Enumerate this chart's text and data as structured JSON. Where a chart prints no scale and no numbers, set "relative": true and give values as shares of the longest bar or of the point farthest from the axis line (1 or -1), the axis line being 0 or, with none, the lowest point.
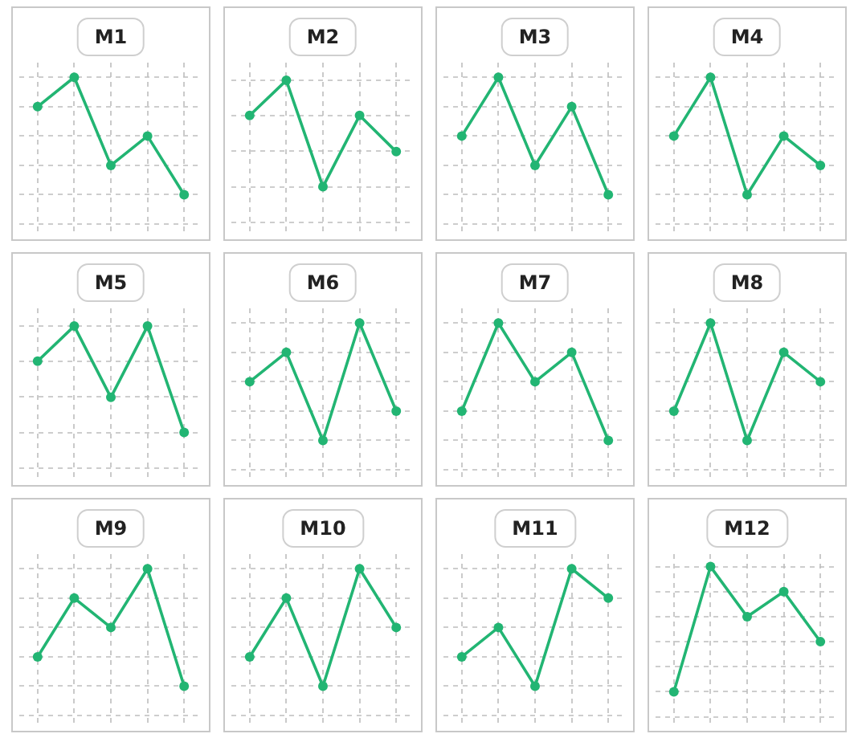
{
  "chart_data": [
    {
      "type": "line",
      "title": "M1",
      "categories": [
        null,
        null,
        null,
        null,
        null
      ],
      "relative": true,
      "grid": true,
      "marker": "circle",
      "series": [
        {
          "color": "#22b573",
          "values": [
            0.75,
            1,
            0.25,
            0.5,
            0
          ]
        }
      ]
    },
    {
      "type": "line",
      "title": "M2",
      "categories": [
        null,
        null,
        null,
        null,
        null
      ],
      "relative": true,
      "grid": true,
      "marker": "circle",
      "series": [
        {
          "color": "#22b573",
          "values": [
            0.67,
            1,
            0,
            0.67,
            0.33
          ]
        }
      ]
    },
    {
      "type": "line",
      "title": "M3",
      "categories": [
        null,
        null,
        null,
        null,
        null
      ],
      "relative": true,
      "grid": true,
      "marker": "circle",
      "series": [
        {
          "color": "#22b573",
          "values": [
            0.5,
            1,
            0.25,
            0.75,
            0
          ]
        }
      ]
    },
    {
      "type": "line",
      "title": "M4",
      "categories": [
        null,
        null,
        null,
        null,
        null
      ],
      "relative": true,
      "grid": true,
      "marker": "circle",
      "series": [
        {
          "color": "#22b573",
          "values": [
            0.5,
            1,
            0,
            0.5,
            0.25
          ]
        }
      ]
    },
    {
      "type": "line",
      "title": "M5",
      "categories": [
        null,
        null,
        null,
        null,
        null
      ],
      "relative": true,
      "grid": true,
      "marker": "circle",
      "series": [
        {
          "color": "#22b573",
          "values": [
            0.67,
            1,
            0.33,
            1,
            0
          ]
        }
      ]
    },
    {
      "type": "line",
      "title": "M6",
      "categories": [
        null,
        null,
        null,
        null,
        null
      ],
      "relative": true,
      "grid": true,
      "marker": "circle",
      "series": [
        {
          "color": "#22b573",
          "values": [
            0.5,
            0.75,
            0,
            1,
            0.25
          ]
        }
      ]
    },
    {
      "type": "line",
      "title": "M7",
      "categories": [
        null,
        null,
        null,
        null,
        null
      ],
      "relative": true,
      "grid": true,
      "marker": "circle",
      "series": [
        {
          "color": "#22b573",
          "values": [
            0.25,
            1,
            0.5,
            0.75,
            0
          ]
        }
      ]
    },
    {
      "type": "line",
      "title": "M8",
      "categories": [
        null,
        null,
        null,
        null,
        null
      ],
      "relative": true,
      "grid": true,
      "marker": "circle",
      "series": [
        {
          "color": "#22b573",
          "values": [
            0.25,
            1,
            0,
            0.75,
            0.5
          ]
        }
      ]
    },
    {
      "type": "line",
      "title": "M9",
      "categories": [
        null,
        null,
        null,
        null,
        null
      ],
      "relative": true,
      "grid": true,
      "marker": "circle",
      "series": [
        {
          "color": "#22b573",
          "values": [
            0.25,
            0.75,
            0.5,
            1,
            0
          ]
        }
      ]
    },
    {
      "type": "line",
      "title": "M10",
      "categories": [
        null,
        null,
        null,
        null,
        null
      ],
      "relative": true,
      "grid": true,
      "marker": "circle",
      "series": [
        {
          "color": "#22b573",
          "values": [
            0.25,
            0.75,
            0,
            1,
            0.5
          ]
        }
      ]
    },
    {
      "type": "line",
      "title": "M11",
      "categories": [
        null,
        null,
        null,
        null,
        null
      ],
      "relative": true,
      "grid": true,
      "marker": "circle",
      "series": [
        {
          "color": "#22b573",
          "values": [
            0.25,
            0.5,
            0,
            1,
            0.75
          ]
        }
      ]
    },
    {
      "type": "line",
      "title": "M12",
      "categories": [
        null,
        null,
        null,
        null,
        null
      ],
      "relative": true,
      "grid": true,
      "marker": "circle",
      "series": [
        {
          "color": "#22b573",
          "values": [
            0,
            1,
            0.6,
            0.8,
            0.4
          ]
        }
      ]
    }
  ]
}
